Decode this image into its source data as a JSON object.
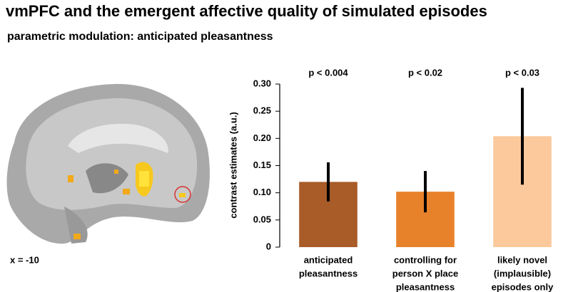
{
  "title": "vmPFC and the emergent affective quality of simulated episodes",
  "subtitle": "parametric modulation: anticipated pleasantness",
  "image_caption": "x = -10",
  "chart_data": {
    "type": "bar",
    "y_label": "contrast estimates (a.u.)",
    "categories": [
      [
        "anticipated",
        "pleasantness"
      ],
      [
        "controlling for",
        "person X place",
        "pleasantness"
      ],
      [
        "likely novel",
        "(implausible)",
        "episodes only"
      ]
    ],
    "values": [
      0.12,
      0.102,
      0.204
    ],
    "errors": [
      0.036,
      0.038,
      0.089
    ],
    "annotations": [
      "p < 0.004",
      "p < 0.02",
      "p < 0.03"
    ],
    "colors": [
      "#a95b28",
      "#e8822a",
      "#fbc99c"
    ],
    "error_color": "#000000",
    "ylim": [
      0,
      0.3
    ],
    "yticks": [
      0,
      0.05,
      {
        "value": 0.1,
        "label": "0.10"
      },
      0.15,
      {
        "value": 0.2,
        "label": "0.20"
      },
      0.25,
      {
        "value": 0.3,
        "label": "0.30"
      }
    ]
  }
}
